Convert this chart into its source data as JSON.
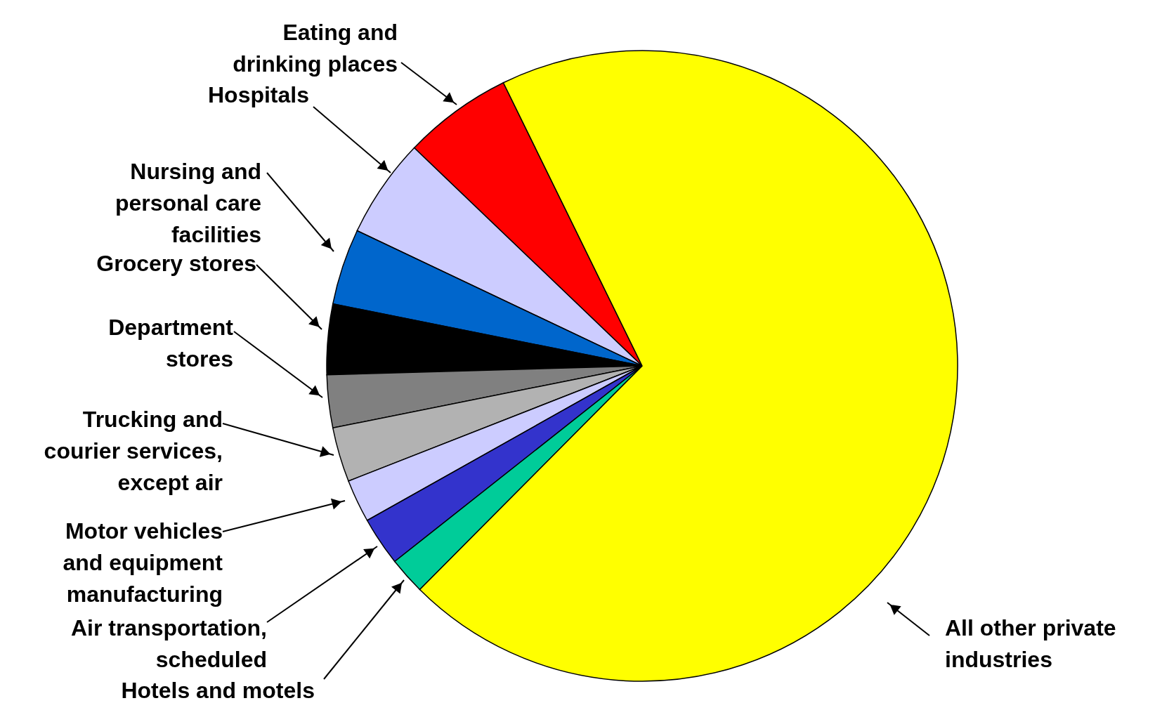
{
  "chart_data": {
    "type": "pie",
    "categories": [
      "Eating and drinking places",
      "Hospitals",
      "Nursing and personal care facilities",
      "Grocery stores",
      "Department stores",
      "Trucking and courier services, except air",
      "Motor vehicles and equipment manufacturing",
      "Air transportation, scheduled",
      "Hotels and motels",
      "All other private industries"
    ],
    "values": [
      5.6,
      5.1,
      3.9,
      3.6,
      2.7,
      2.8,
      2.2,
      2.5,
      1.9,
      69.7
    ],
    "colors": [
      "#ff0000",
      "#ccccff",
      "#0066cc",
      "#000000",
      "#808080",
      "#b2b2b2",
      "#ccccff",
      "#3333cc",
      "#00cc99",
      "#ffff00"
    ]
  }
}
